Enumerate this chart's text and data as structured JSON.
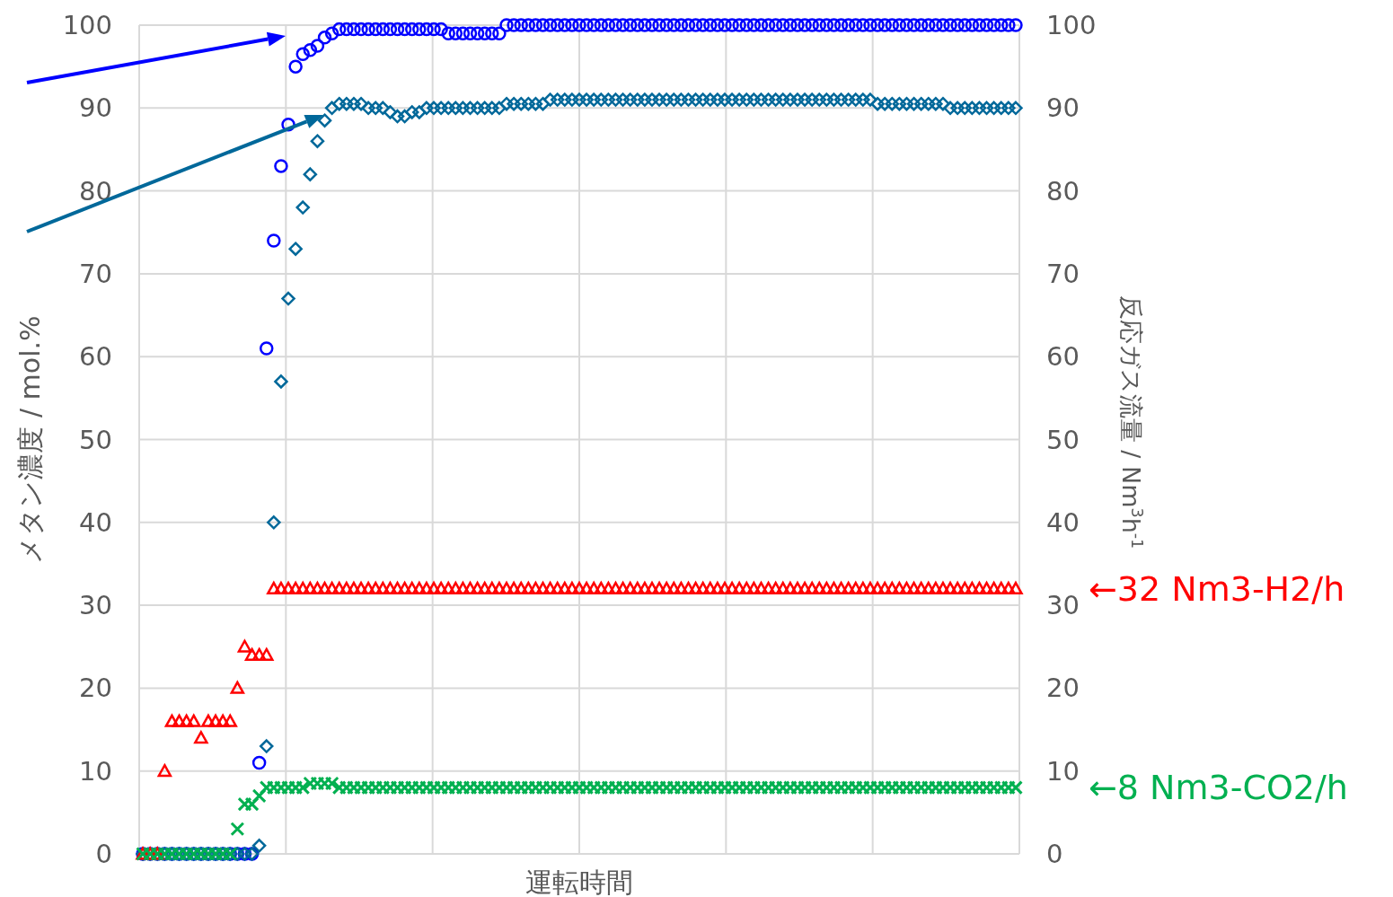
{
  "chart_data": {
    "type": "scatter",
    "xlabel": "運転時間",
    "ylabel": "メタン濃度 / mol.%",
    "y2label": "反応ガス流量 / Nm$^{3}$h$^{-1}$",
    "categories": [
      null,
      null,
      null,
      null,
      null,
      null,
      null,
      null,
      null,
      null,
      null,
      null,
      null,
      null,
      null,
      null,
      null,
      null,
      null,
      null,
      null,
      null,
      null,
      null,
      null,
      null,
      null,
      null,
      null,
      null,
      null,
      null,
      null,
      null,
      null,
      null,
      null,
      null,
      null,
      null,
      null,
      null,
      null,
      null,
      null,
      null,
      null,
      null,
      null,
      null,
      null,
      null,
      null,
      null,
      null,
      null,
      null,
      null,
      null,
      null,
      null,
      null,
      null,
      null,
      null,
      null,
      null,
      null,
      null,
      null,
      null,
      null,
      null,
      null,
      null,
      null,
      null,
      null,
      null,
      null,
      null,
      null,
      null,
      null,
      null,
      null,
      null,
      null,
      null,
      null,
      null,
      null,
      null,
      null,
      null,
      null,
      null,
      null,
      null,
      null,
      null,
      null,
      null,
      null,
      null,
      null,
      null,
      null,
      null,
      null,
      null,
      null,
      null,
      null,
      null,
      null,
      null,
      null,
      null,
      null,
      null
    ],
    "ylim": [
      0,
      100
    ],
    "yticks": [
      0,
      10,
      20,
      30,
      40,
      50,
      60,
      70,
      80,
      90,
      100
    ],
    "y2lim": [
      0,
      100
    ],
    "y2ticks": [
      0,
      10,
      20,
      30,
      40,
      50,
      60,
      70,
      80,
      90,
      100
    ],
    "grid": true,
    "series": [
      {
        "color": "#0000ff",
        "marker": "circle",
        "values": [
          0,
          0,
          0,
          0,
          0,
          0,
          0,
          0,
          0,
          0,
          0,
          0,
          0,
          0,
          0,
          0,
          11,
          61,
          74,
          83,
          88,
          95,
          96.5,
          97,
          97.5,
          98.5,
          99,
          99.5,
          99.5,
          99.5,
          99.5,
          99.5,
          99.5,
          99.5,
          99.5,
          99.5,
          99.5,
          99.5,
          99.5,
          99.5,
          99.5,
          99.5,
          99,
          99,
          99,
          99,
          99,
          99,
          99,
          99,
          100,
          100,
          100,
          100,
          100,
          100,
          100,
          100,
          100,
          100,
          100,
          100,
          100,
          100,
          100,
          100,
          100,
          100,
          100,
          100,
          100,
          100,
          100,
          100,
          100,
          100,
          100,
          100,
          100,
          100,
          100,
          100,
          100,
          100,
          100,
          100,
          100,
          100,
          100,
          100,
          100,
          100,
          100,
          100,
          100,
          100,
          100,
          100,
          100,
          100,
          100,
          100,
          100,
          100,
          100,
          100,
          100,
          100,
          100,
          100,
          100,
          100,
          100,
          100,
          100,
          100,
          100,
          100,
          100,
          100,
          100
        ]
      },
      {
        "color": "#00689a",
        "marker": "diamond",
        "values": [
          0,
          0,
          0,
          0,
          0,
          0,
          0,
          0,
          0,
          0,
          0,
          0,
          0,
          0,
          0,
          0,
          1,
          13,
          40,
          57,
          67,
          73,
          78,
          82,
          86,
          88.5,
          90,
          90.5,
          90.5,
          90.5,
          90.5,
          90,
          90,
          90,
          89.5,
          89,
          89,
          89.5,
          89.5,
          90,
          90,
          90,
          90,
          90,
          90,
          90,
          90,
          90,
          90,
          90,
          90.5,
          90.5,
          90.5,
          90.5,
          90.5,
          90.5,
          91,
          91,
          91,
          91,
          91,
          91,
          91,
          91,
          91,
          91,
          91,
          91,
          91,
          91,
          91,
          91,
          91,
          91,
          91,
          91,
          91,
          91,
          91,
          91,
          91,
          91,
          91,
          91,
          91,
          91,
          91,
          91,
          91,
          91,
          91,
          91,
          91,
          91,
          91,
          91,
          91,
          91,
          91,
          91,
          91,
          90.5,
          90.5,
          90.5,
          90.5,
          90.5,
          90.5,
          90.5,
          90.5,
          90.5,
          90.5,
          90,
          90,
          90,
          90,
          90,
          90,
          90,
          90,
          90,
          90
        ]
      },
      {
        "color": "#ff0000",
        "marker": "triangle",
        "axis": "y2",
        "values": [
          0,
          0,
          0,
          10,
          16,
          16,
          16,
          16,
          14,
          16,
          16,
          16,
          16,
          20,
          25,
          24,
          24,
          24,
          32,
          32,
          32,
          32,
          32,
          32,
          32,
          32,
          32,
          32,
          32,
          32,
          32,
          32,
          32,
          32,
          32,
          32,
          32,
          32,
          32,
          32,
          32,
          32,
          32,
          32,
          32,
          32,
          32,
          32,
          32,
          32,
          32,
          32,
          32,
          32,
          32,
          32,
          32,
          32,
          32,
          32,
          32,
          32,
          32,
          32,
          32,
          32,
          32,
          32,
          32,
          32,
          32,
          32,
          32,
          32,
          32,
          32,
          32,
          32,
          32,
          32,
          32,
          32,
          32,
          32,
          32,
          32,
          32,
          32,
          32,
          32,
          32,
          32,
          32,
          32,
          32,
          32,
          32,
          32,
          32,
          32,
          32,
          32,
          32,
          32,
          32,
          32,
          32,
          32,
          32,
          32,
          32,
          32,
          32,
          32,
          32,
          32,
          32,
          32,
          32,
          32,
          32
        ]
      },
      {
        "color": "#00b050",
        "marker": "cross",
        "axis": "y2",
        "values": [
          0,
          0,
          0,
          0,
          0,
          0,
          0,
          0,
          0,
          0,
          0,
          0,
          0,
          3,
          6,
          6,
          7,
          8,
          8,
          8,
          8,
          8,
          8,
          8.5,
          8.5,
          8.5,
          8.5,
          8,
          8,
          8,
          8,
          8,
          8,
          8,
          8,
          8,
          8,
          8,
          8,
          8,
          8,
          8,
          8,
          8,
          8,
          8,
          8,
          8,
          8,
          8,
          8,
          8,
          8,
          8,
          8,
          8,
          8,
          8,
          8,
          8,
          8,
          8,
          8,
          8,
          8,
          8,
          8,
          8,
          8,
          8,
          8,
          8,
          8,
          8,
          8,
          8,
          8,
          8,
          8,
          8,
          8,
          8,
          8,
          8,
          8,
          8,
          8,
          8,
          8,
          8,
          8,
          8,
          8,
          8,
          8,
          8,
          8,
          8,
          8,
          8,
          8,
          8,
          8,
          8,
          8,
          8,
          8,
          8,
          8,
          8,
          8,
          8,
          8,
          8,
          8,
          8,
          8,
          8,
          8,
          8,
          8
        ]
      }
    ],
    "annotations": [
      "←32 Nm3-H2/h",
      "←8 Nm3-CO2/h"
    ]
  }
}
